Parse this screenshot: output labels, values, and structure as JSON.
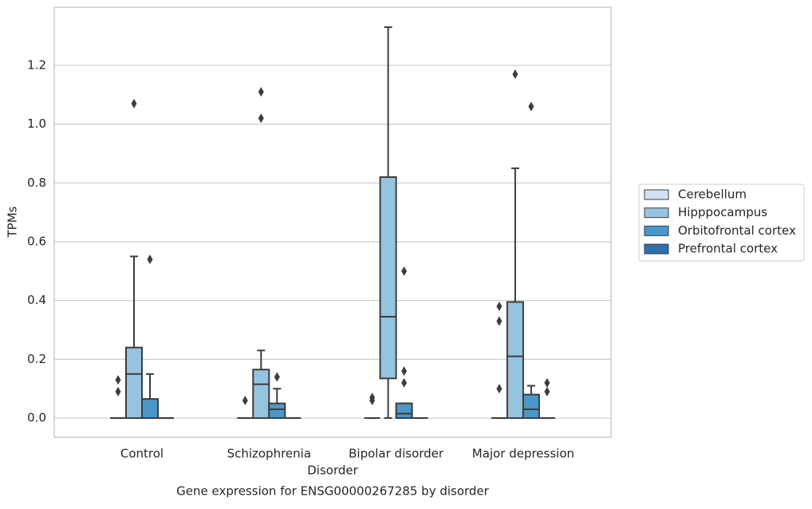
{
  "chart_data": {
    "type": "box",
    "title": "Gene expression for ENSG00000267285 by disorder",
    "x_label": "Disorder",
    "y_label": "TPMs",
    "categories": [
      "Control",
      "Schizophrenia",
      "Bipolar disorder",
      "Major depression"
    ],
    "ylim": [
      -0.065,
      1.398
    ],
    "yticks": [
      {
        "value": 0,
        "label": "0.0"
      },
      0.2,
      0.4,
      0.6,
      0.8,
      {
        "value": 1,
        "label": "1.0"
      },
      1.2
    ],
    "grid": true,
    "legend_position": "right",
    "series": [
      {
        "name": "Cerebellum",
        "color": "#d0e1f2",
        "values": [
          {
            "whislo": 0,
            "q1": 0,
            "med": 0,
            "q3": 0,
            "whishi": 0,
            "fliers": [
              0.13,
              0.09
            ]
          },
          {
            "whislo": 0,
            "q1": 0,
            "med": 0,
            "q3": 0,
            "whishi": 0,
            "fliers": [
              0.06
            ]
          },
          {
            "whislo": 0,
            "q1": 0,
            "med": 0,
            "q3": 0,
            "whishi": 0,
            "fliers": [
              0.07,
              0.06
            ]
          },
          {
            "whislo": 0,
            "q1": 0,
            "med": 0,
            "q3": 0,
            "whishi": 0,
            "fliers": [
              0.38,
              0.33,
              0.1
            ]
          }
        ]
      },
      {
        "name": "Hipppocampus",
        "color": "#94c4df",
        "values": [
          {
            "whislo": 0,
            "q1": 0,
            "med": 0.15,
            "q3": 0.24,
            "whishi": 0.55,
            "fliers": [
              1.07
            ]
          },
          {
            "whislo": 0,
            "q1": 0,
            "med": 0.115,
            "q3": 0.165,
            "whishi": 0.23,
            "fliers": [
              1.11,
              1.02
            ]
          },
          {
            "whislo": 0,
            "q1": 0.135,
            "med": 0.345,
            "q3": 0.82,
            "whishi": 1.33,
            "fliers": []
          },
          {
            "whislo": 0,
            "q1": 0,
            "med": 0.21,
            "q3": 0.395,
            "whishi": 0.85,
            "fliers": [
              1.17
            ]
          }
        ]
      },
      {
        "name": "Orbitofrontal cortex",
        "color": "#4a98c9",
        "values": [
          {
            "whislo": 0,
            "q1": 0,
            "med": 0,
            "q3": 0.065,
            "whishi": 0.15,
            "fliers": [
              0.54
            ]
          },
          {
            "whislo": 0,
            "q1": 0,
            "med": 0.03,
            "q3": 0.05,
            "whishi": 0.1,
            "fliers": [
              0.14
            ]
          },
          {
            "whislo": 0,
            "q1": 0,
            "med": 0.015,
            "q3": 0.05,
            "whishi": 0.05,
            "fliers": [
              0.5,
              0.16,
              0.12
            ]
          },
          {
            "whislo": 0,
            "q1": 0,
            "med": 0.03,
            "q3": 0.08,
            "whishi": 0.11,
            "fliers": [
              1.06
            ]
          }
        ]
      },
      {
        "name": "Prefrontal cortex",
        "color": "#2e6fb0",
        "values": [
          {
            "whislo": 0,
            "q1": 0,
            "med": 0,
            "q3": 0,
            "whishi": 0,
            "fliers": []
          },
          {
            "whislo": 0,
            "q1": 0,
            "med": 0,
            "q3": 0,
            "whishi": 0,
            "fliers": []
          },
          {
            "whislo": 0,
            "q1": 0,
            "med": 0,
            "q3": 0,
            "whishi": 0,
            "fliers": []
          },
          {
            "whislo": 0,
            "q1": 0,
            "med": 0,
            "q3": 0,
            "whishi": 0,
            "fliers": [
              0.12,
              0.09
            ]
          }
        ]
      }
    ]
  }
}
